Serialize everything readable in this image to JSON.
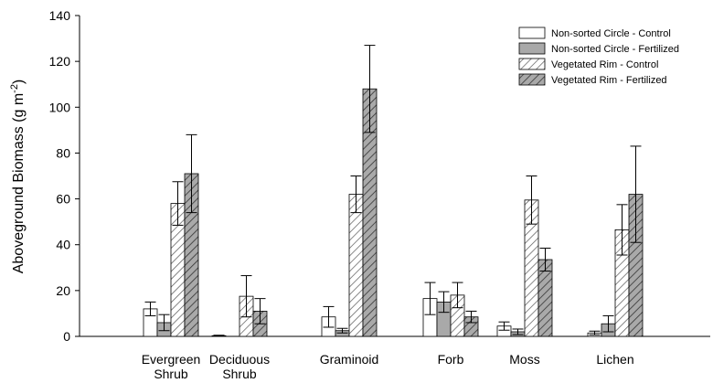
{
  "chart_data": {
    "type": "bar",
    "title": "",
    "xlabel": "",
    "ylabel": "Aboveground Biomass (g m",
    "ylabel_superscript": "-2",
    "ylabel_suffix": ")",
    "ylim": [
      0,
      140
    ],
    "yticks": [
      0,
      20,
      40,
      60,
      80,
      100,
      120,
      140
    ],
    "grid": false,
    "legend_position": "top-right",
    "categories": [
      [
        "Evergreen",
        "Shrub"
      ],
      [
        "Deciduous",
        "Shrub"
      ],
      [
        "Graminoid"
      ],
      [
        "Forb"
      ],
      [
        "Moss"
      ],
      [
        "Lichen"
      ]
    ],
    "series": [
      {
        "name": "Non-sorted Circle - Control",
        "fill": "#ffffff",
        "pattern": "none",
        "values": [
          12,
          0.3,
          8.5,
          16.5,
          4.5,
          1.5
        ],
        "errors": [
          3,
          0.2,
          4.5,
          7,
          1.8,
          0.8
        ]
      },
      {
        "name": "Non-sorted Circle - Fertilized",
        "fill": "#a9a9a9",
        "pattern": "none",
        "values": [
          6,
          0,
          2.5,
          15,
          2,
          5.5
        ],
        "errors": [
          3.5,
          0,
          1,
          4.5,
          1.2,
          3.5
        ]
      },
      {
        "name": "Vegetated Rim - Control",
        "fill": "#ffffff",
        "pattern": "hatch-light",
        "values": [
          58,
          17.5,
          62,
          18,
          59.5,
          46.5
        ],
        "errors": [
          9.5,
          9,
          8,
          5.5,
          10.5,
          11
        ]
      },
      {
        "name": "Vegetated Rim - Fertilized",
        "fill": "#a9a9a9",
        "pattern": "hatch-dark",
        "values": [
          71,
          11,
          108,
          8.5,
          33.5,
          62
        ],
        "errors": [
          17,
          5.5,
          19,
          2.5,
          5,
          21
        ]
      }
    ]
  }
}
